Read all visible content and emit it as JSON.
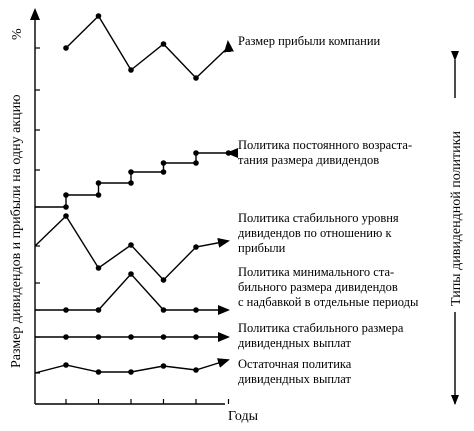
{
  "axes": {
    "y_title": "Размер дивидендов и прибыли на одну акцию",
    "y_unit": "%",
    "x_title": "Годы",
    "right_title": "Типы дивидендной политики"
  },
  "policies": [
    {
      "id": "profit",
      "label_lines": [
        "Размер прибыли компании"
      ],
      "points": [
        [
          0,
          48
        ],
        [
          1,
          16
        ],
        [
          2,
          70
        ],
        [
          3,
          44
        ],
        [
          4,
          78
        ],
        [
          5,
          47
        ]
      ]
    },
    {
      "id": "constant-growth",
      "label_lines": [
        "Политика постоянного возраста-",
        "тания размера дивидендов"
      ],
      "points": [
        [
          -1,
          207
        ],
        [
          0,
          207
        ],
        [
          0,
          195
        ],
        [
          1,
          195
        ],
        [
          1,
          183
        ],
        [
          2,
          183
        ],
        [
          2,
          172
        ],
        [
          3,
          172
        ],
        [
          3,
          163
        ],
        [
          4,
          163
        ],
        [
          4,
          153
        ],
        [
          5,
          153
        ]
      ]
    },
    {
      "id": "stable-ratio",
      "label_lines": [
        "Политика стабильного уровня",
        "дивидендов по отношению к",
        "прибыли"
      ],
      "points": [
        [
          -1,
          246
        ],
        [
          0,
          216
        ],
        [
          1,
          268
        ],
        [
          2,
          245
        ],
        [
          3,
          280
        ],
        [
          4,
          247
        ]
      ]
    },
    {
      "id": "min-plus-extra",
      "label_lines": [
        "Политика минимального ста-",
        "бильного размера дивидендов",
        "с надбавкой в отдельные периоды"
      ],
      "points": [
        [
          -1,
          310
        ],
        [
          0,
          310
        ],
        [
          1,
          310
        ],
        [
          2,
          274
        ],
        [
          3,
          310
        ],
        [
          4,
          310
        ]
      ]
    },
    {
      "id": "stable-size",
      "label_lines": [
        "Политика стабильного размера",
        "дивидендных выплат"
      ],
      "points": [
        [
          -1,
          337
        ],
        [
          0,
          337
        ],
        [
          1,
          337
        ],
        [
          2,
          337
        ],
        [
          3,
          337
        ],
        [
          4,
          337
        ]
      ]
    },
    {
      "id": "residual",
      "label_lines": [
        "Остаточная политика",
        "дивидендных выплат"
      ],
      "points": [
        [
          -1,
          373
        ],
        [
          0,
          365
        ],
        [
          1,
          372
        ],
        [
          2,
          372
        ],
        [
          3,
          366
        ],
        [
          4,
          370
        ]
      ]
    }
  ]
}
